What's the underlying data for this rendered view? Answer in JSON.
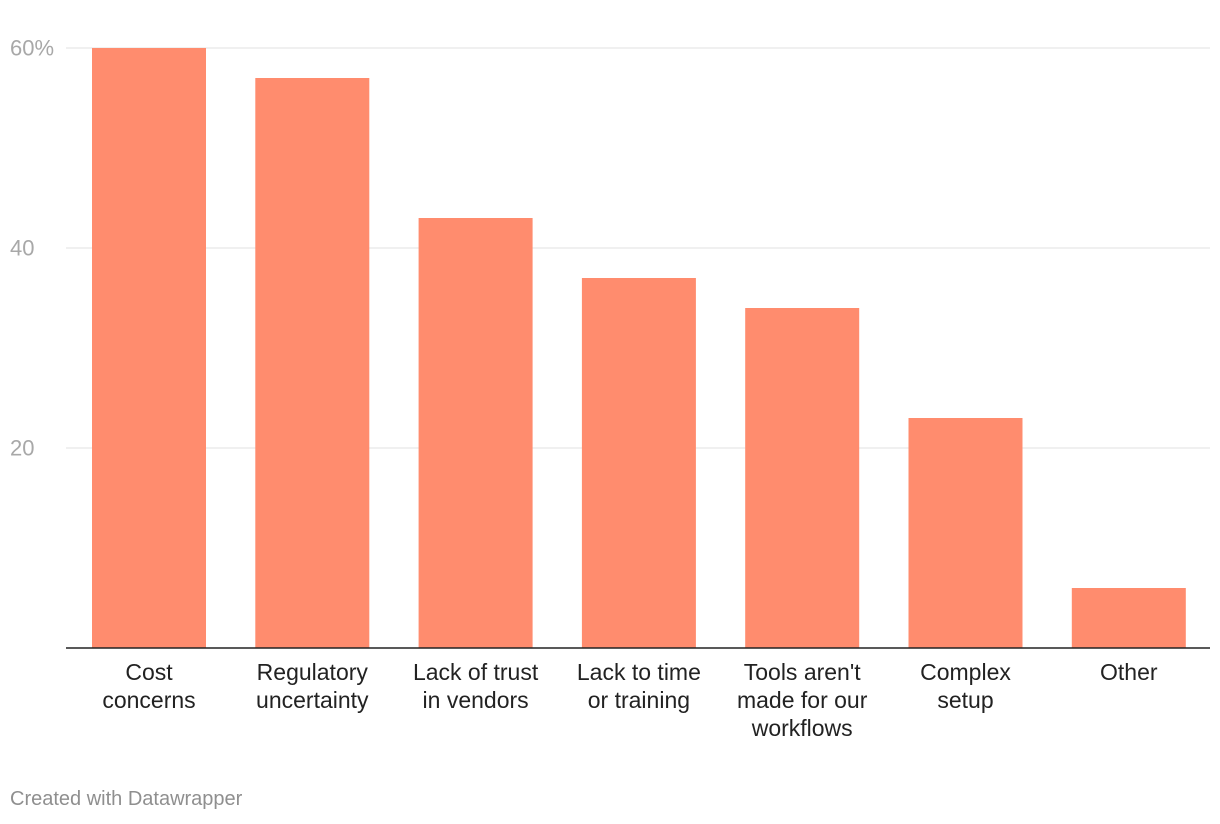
{
  "chart_data": {
    "type": "bar",
    "categories": [
      [
        "Cost",
        "concerns"
      ],
      [
        "Regulatory",
        "uncertainty"
      ],
      [
        "Lack of trust",
        "in vendors"
      ],
      [
        "Lack to time",
        "or training"
      ],
      [
        "Tools aren't",
        "made for our",
        "workflows"
      ],
      [
        "Complex",
        "setup"
      ],
      [
        "Other"
      ]
    ],
    "values": [
      60,
      57,
      43,
      37,
      34,
      23,
      6
    ],
    "y_ticks": [
      {
        "value": 20,
        "label": "20"
      },
      {
        "value": 40,
        "label": "40"
      },
      {
        "value": 60,
        "label": "60%"
      }
    ],
    "ylim": [
      0,
      60
    ],
    "grid": true,
    "bar_color": "#ff8c6e",
    "title": "",
    "xlabel": "",
    "ylabel": ""
  },
  "footer": {
    "credit": "Created with Datawrapper"
  }
}
